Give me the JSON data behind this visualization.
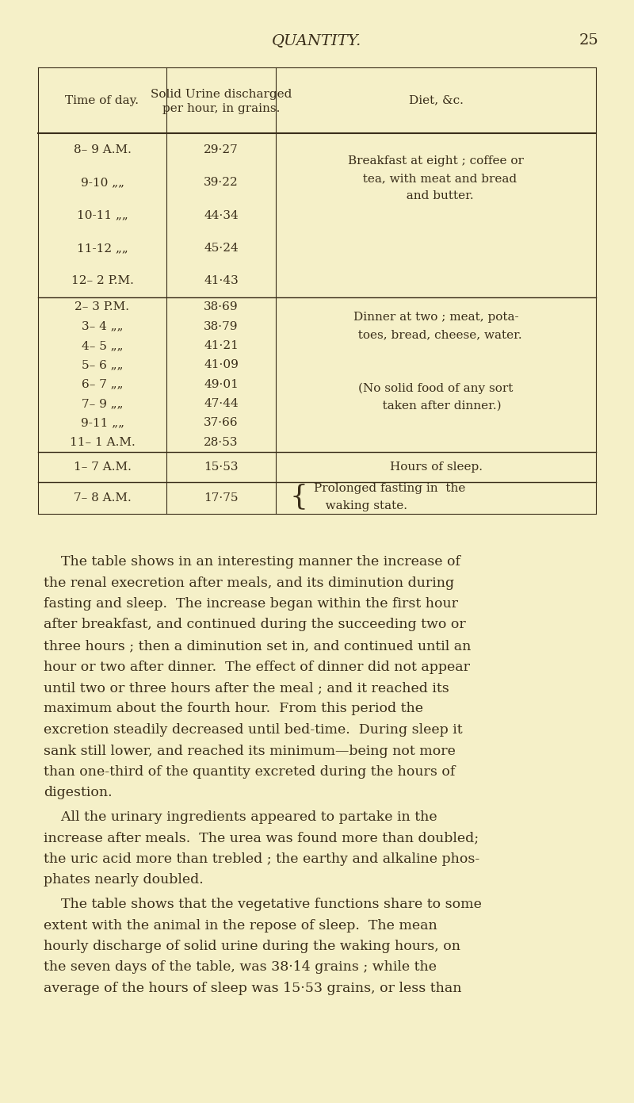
{
  "bg_color": "#f5f0c8",
  "text_color": "#3a2e1a",
  "title": "QUANTITY.",
  "page_number": "25",
  "col_headers": [
    "Time of day.",
    "Solid Urine discharged\nper hour, in grains.",
    "Diet, &c."
  ],
  "section1_times": [
    "8– 9 A.M.",
    "9-10 „„",
    "10-11 „„",
    "11-12 „„",
    "12– 2 P.M."
  ],
  "section1_vals": [
    "29·27",
    "39·22",
    "44·34",
    "45·24",
    "41·43"
  ],
  "section1_diet": [
    "Breakfast at eight ; coffee or",
    "  tea, with meat and bread",
    "  and butter."
  ],
  "section2_times": [
    "2– 3 P.M.",
    "3– 4 „„",
    "4– 5 „„",
    "5– 6 „„",
    "6– 7 „„",
    "7– 9 „„",
    "9-11 „„",
    "11– 1 A.M."
  ],
  "section2_vals": [
    "38·69",
    "38·79",
    "41·21",
    "41·09",
    "49·01",
    "47·44",
    "37·66",
    "28·53"
  ],
  "section2_diet1": [
    "Dinner at two ; meat, pota-",
    "  toes, bread, cheese, water."
  ],
  "section2_diet2": [
    "(No solid food of any sort",
    "   taken after dinner.)"
  ],
  "section3_time": "1– 7 A.M.",
  "section3_val": "15·53",
  "section3_diet": "Hours of sleep.",
  "section4_time": "7– 8 A.M.",
  "section4_val": "17·75",
  "section4_diet1": "Prolonged fasting in  the",
  "section4_diet2": "   waking state.",
  "body_paragraphs": [
    [
      "    The table shows in an interesting manner the increase of",
      "the renal execretion after meals, and its diminution during",
      "fasting and sleep.  The increase began within the first hour",
      "after breakfast, and continued during the succeeding two or",
      "three hours ; then a diminution set in, and continued until an",
      "hour or two after dinner.  The effect of dinner did not appear",
      "until two or three hours after the meal ; and it reached its",
      "maximum about the fourth hour.  From this period the",
      "excretion steadily decreased until bed-time.  During sleep it",
      "sank still lower, and reached its minimum—being not more",
      "than one-third of the quantity excreted during the hours of",
      "digestion."
    ],
    [
      "    All the urinary ingredients appeared to partake in the",
      "increase after meals.  The urea was found more than doubled;",
      "the uric acid more than trebled ; the earthy and alkaline phos-",
      "phates nearly doubled."
    ],
    [
      "    The table shows that the vegetative functions share to some",
      "extent with the animal in the repose of sleep.  The mean",
      "hourly discharge of solid urine during the waking hours, on",
      "the seven days of the table, was 38·14 grains ; while the",
      "average of the hours of sleep was 15·53 grains, or less than"
    ]
  ]
}
